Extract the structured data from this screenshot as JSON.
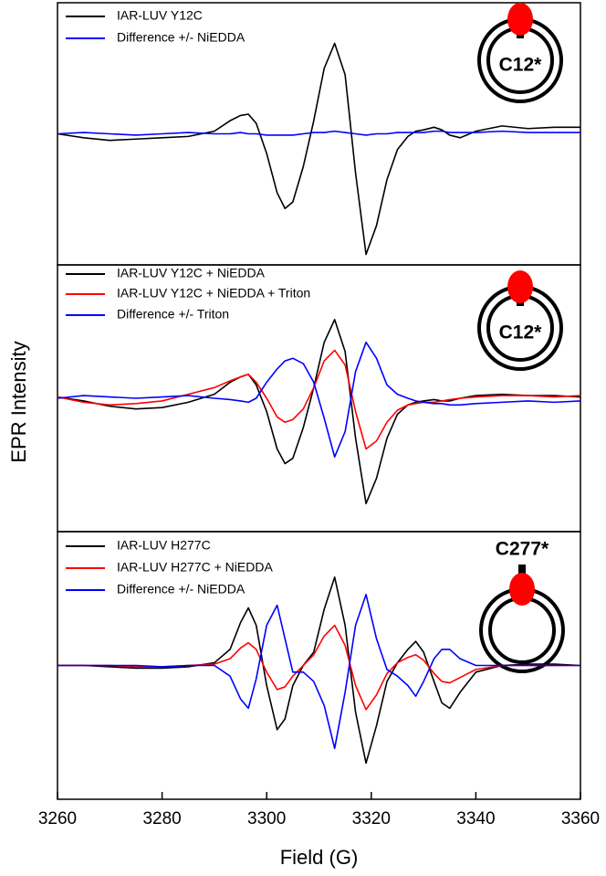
{
  "chart_data": [
    {
      "type": "line",
      "xlim": [
        3260,
        3360
      ],
      "ylim": [
        -1,
        1
      ],
      "annotation": "C12*",
      "x": [
        3260,
        3265,
        3270,
        3275,
        3280,
        3285,
        3290,
        3293,
        3295,
        3296.5,
        3298,
        3300,
        3302,
        3303.5,
        3305,
        3307,
        3309,
        3311,
        3313,
        3315,
        3317,
        3319,
        3321,
        3323,
        3325,
        3327,
        3328.5,
        3330,
        3332,
        3333.5,
        3335,
        3337,
        3340,
        3345,
        3350,
        3355,
        3360
      ],
      "series": [
        {
          "name": "IAR-LUV Y12C",
          "color": "#000000",
          "values": [
            0,
            -0.03,
            -0.05,
            -0.04,
            -0.03,
            -0.02,
            0.02,
            0.1,
            0.14,
            0.15,
            0.08,
            -0.15,
            -0.45,
            -0.57,
            -0.52,
            -0.25,
            0.1,
            0.5,
            0.69,
            0.45,
            -0.3,
            -0.92,
            -0.7,
            -0.35,
            -0.12,
            -0.02,
            0.02,
            0.03,
            0.05,
            0.03,
            -0.01,
            -0.03,
            0.02,
            0.06,
            0.04,
            0.05,
            0.05
          ]
        },
        {
          "name": "Difference +/- NiEDDA",
          "color": "#0000ff",
          "values": [
            0,
            0.01,
            0,
            -0.01,
            0,
            0.01,
            0,
            0,
            0.01,
            0,
            0,
            -0.01,
            -0.01,
            -0.01,
            -0.01,
            0,
            0.01,
            0.01,
            0.02,
            0.01,
            0,
            -0.01,
            0,
            0,
            0.01,
            0.01,
            0.01,
            0.01,
            0.02,
            0.02,
            0.01,
            0.01,
            0.01,
            0.02,
            0.01,
            0.01,
            0.01
          ]
        }
      ]
    },
    {
      "type": "line",
      "xlim": [
        3260,
        3360
      ],
      "ylim": [
        -1,
        1
      ],
      "annotation": "C12*",
      "ylabel": "EPR Intensity",
      "x": [
        3260,
        3265,
        3270,
        3275,
        3280,
        3285,
        3290,
        3293,
        3295,
        3296.5,
        3298,
        3300,
        3302,
        3303.5,
        3305,
        3307,
        3309,
        3311,
        3313,
        3315,
        3317,
        3319,
        3321,
        3323,
        3325,
        3327,
        3328.5,
        3330,
        3332,
        3333.5,
        3335,
        3337,
        3340,
        3345,
        3350,
        3355,
        3360
      ],
      "series": [
        {
          "name": "IAR-LUV Y12C + NiEDDA",
          "color": "#000000",
          "values": [
            0.01,
            -0.02,
            -0.06,
            -0.08,
            -0.07,
            -0.03,
            0.03,
            0.12,
            0.16,
            0.18,
            0.1,
            -0.1,
            -0.38,
            -0.49,
            -0.45,
            -0.22,
            0.08,
            0.42,
            0.59,
            0.35,
            -0.3,
            -0.79,
            -0.6,
            -0.3,
            -0.12,
            -0.05,
            -0.03,
            -0.02,
            -0.01,
            -0.02,
            -0.02,
            0,
            0.02,
            0.03,
            0.02,
            0.02,
            0.01
          ]
        },
        {
          "name": "IAR-LUV Y12C + NiEDDA + Triton",
          "color": "#ff0000",
          "values": [
            0.01,
            -0.03,
            -0.05,
            -0.04,
            -0.02,
            0.03,
            0.08,
            0.13,
            0.16,
            0.18,
            0.12,
            0,
            -0.14,
            -0.18,
            -0.16,
            -0.08,
            0.08,
            0.28,
            0.36,
            0.25,
            -0.1,
            -0.38,
            -0.32,
            -0.18,
            -0.09,
            -0.05,
            -0.04,
            -0.03,
            -0.03,
            -0.02,
            -0.01,
            0,
            0.01,
            0.02,
            0.02,
            0.01,
            0.02
          ]
        },
        {
          "name": "Difference +/- Triton",
          "color": "#0000ff",
          "values": [
            0,
            0.02,
            0.01,
            0,
            0.01,
            0.02,
            0,
            -0.01,
            -0.02,
            -0.03,
            0,
            0.12,
            0.22,
            0.28,
            0.3,
            0.26,
            0.12,
            -0.15,
            -0.44,
            -0.25,
            0.2,
            0.42,
            0.3,
            0.1,
            0.03,
            0,
            -0.02,
            -0.03,
            -0.04,
            -0.04,
            -0.05,
            -0.05,
            -0.04,
            -0.03,
            -0.02,
            -0.03,
            -0.02
          ]
        }
      ]
    },
    {
      "type": "line",
      "xlim": [
        3260,
        3360
      ],
      "ylim": [
        -1,
        1
      ],
      "annotation": "C277*",
      "xlabel": "Field (G)",
      "xticks": [
        3260,
        3280,
        3300,
        3320,
        3340,
        3360
      ],
      "x": [
        3260,
        3265,
        3270,
        3275,
        3280,
        3285,
        3290,
        3293,
        3295,
        3296.5,
        3298,
        3300,
        3302,
        3303.5,
        3305,
        3307,
        3309,
        3311,
        3313,
        3315,
        3317,
        3319,
        3321,
        3323,
        3325,
        3327,
        3328.5,
        3330,
        3332,
        3333.5,
        3335,
        3337,
        3340,
        3345,
        3350,
        3355,
        3360
      ],
      "series": [
        {
          "name": "IAR-LUV H277C",
          "color": "#000000",
          "values": [
            0,
            0,
            -0.01,
            -0.02,
            -0.02,
            -0.01,
            0.02,
            0.12,
            0.32,
            0.43,
            0.3,
            -0.15,
            -0.48,
            -0.4,
            -0.15,
            0,
            0.1,
            0.42,
            0.66,
            0.3,
            -0.35,
            -0.73,
            -0.45,
            -0.12,
            0.02,
            0.12,
            0.18,
            0.1,
            -0.12,
            -0.28,
            -0.32,
            -0.2,
            -0.05,
            0,
            0.01,
            0.01,
            0
          ]
        },
        {
          "name": "IAR-LUV H277C + NiEDDA",
          "color": "#ff0000",
          "values": [
            0,
            0,
            0,
            -0.01,
            -0.01,
            0,
            0.01,
            0.05,
            0.13,
            0.17,
            0.12,
            -0.05,
            -0.18,
            -0.16,
            -0.08,
            0,
            0.08,
            0.22,
            0.3,
            0.15,
            -0.15,
            -0.33,
            -0.22,
            -0.06,
            0.02,
            0.06,
            0.08,
            0.04,
            -0.06,
            -0.12,
            -0.13,
            -0.09,
            -0.03,
            0,
            0,
            0,
            0
          ]
        },
        {
          "name": "Difference +/- NiEDDA",
          "color": "#0000ff",
          "values": [
            0,
            0,
            0,
            0,
            -0.01,
            0,
            0,
            -0.08,
            -0.25,
            -0.32,
            -0.1,
            0.3,
            0.45,
            0.2,
            -0.05,
            -0.05,
            -0.12,
            -0.3,
            -0.62,
            -0.2,
            0.3,
            0.53,
            0.2,
            -0.03,
            -0.08,
            -0.15,
            -0.23,
            -0.12,
            0.05,
            0.12,
            0.12,
            0.05,
            0,
            0,
            0,
            0,
            0
          ]
        }
      ]
    }
  ]
}
